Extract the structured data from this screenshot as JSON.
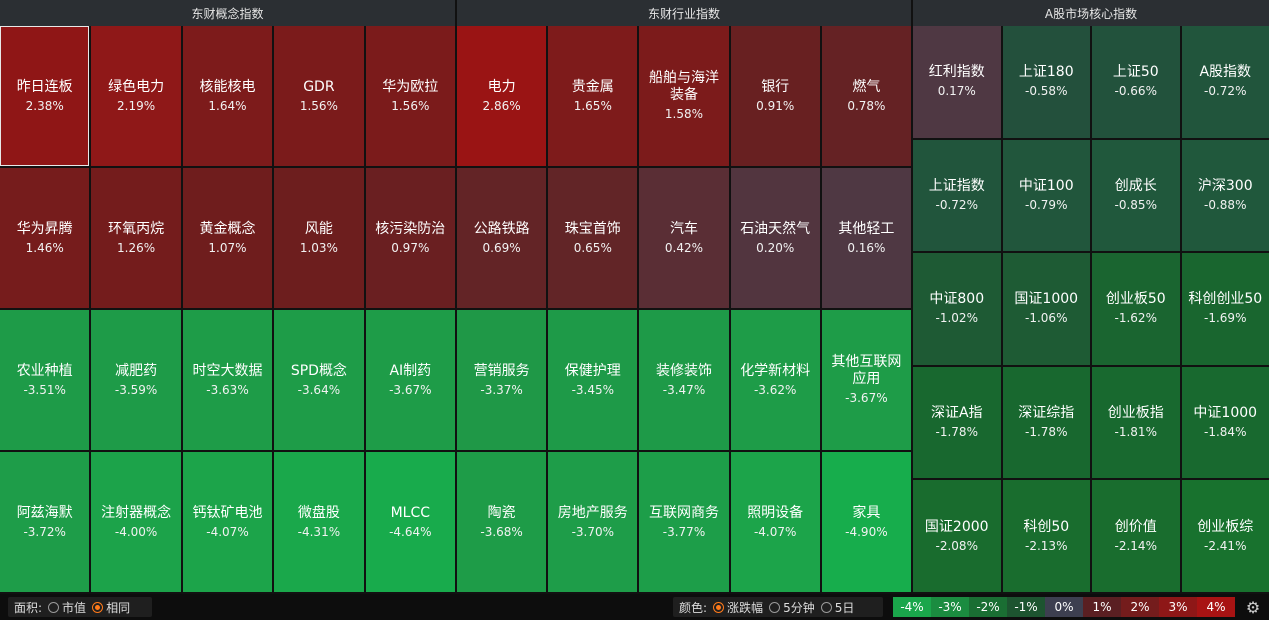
{
  "panels": [
    {
      "title": "东财概念指数",
      "rows": 4,
      "cols": 5,
      "items": [
        {
          "name": "昨日连板",
          "pct": "2.38%",
          "color": "#8f1616",
          "selected": true
        },
        {
          "name": "绿色电力",
          "pct": "2.19%",
          "color": "#8f1818"
        },
        {
          "name": "核能核电",
          "pct": "1.64%",
          "color": "#7d1b1b"
        },
        {
          "name": "GDR",
          "pct": "1.56%",
          "color": "#7b1b1b"
        },
        {
          "name": "华为欧拉",
          "pct": "1.56%",
          "color": "#7b1b1b"
        },
        {
          "name": "华为昇腾",
          "pct": "1.46%",
          "color": "#761c1c"
        },
        {
          "name": "环氧丙烷",
          "pct": "1.26%",
          "color": "#741c1c"
        },
        {
          "name": "黄金概念",
          "pct": "1.07%",
          "color": "#6f1d1d"
        },
        {
          "name": "风能",
          "pct": "1.03%",
          "color": "#6d1e1e"
        },
        {
          "name": "核污染防治",
          "pct": "0.97%",
          "color": "#6a1f21"
        },
        {
          "name": "农业种植",
          "pct": "-3.51%",
          "color": "#1e9b48"
        },
        {
          "name": "减肥药",
          "pct": "-3.59%",
          "color": "#1e9b48"
        },
        {
          "name": "时空大数据",
          "pct": "-3.63%",
          "color": "#1e9c48"
        },
        {
          "name": "SPD概念",
          "pct": "-3.64%",
          "color": "#1e9c48"
        },
        {
          "name": "AI制药",
          "pct": "-3.67%",
          "color": "#1e9c48"
        },
        {
          "name": "阿兹海默",
          "pct": "-3.72%",
          "color": "#1e9d49"
        },
        {
          "name": "注射器概念",
          "pct": "-4.00%",
          "color": "#1ca34a"
        },
        {
          "name": "钙钛矿电池",
          "pct": "-4.07%",
          "color": "#1ca44a"
        },
        {
          "name": "微盘股",
          "pct": "-4.31%",
          "color": "#1aa84b"
        },
        {
          "name": "MLCC",
          "pct": "-4.64%",
          "color": "#18ab4c"
        }
      ]
    },
    {
      "title": "东财行业指数",
      "rows": 4,
      "cols": 5,
      "items": [
        {
          "name": "电力",
          "pct": "2.86%",
          "color": "#9a1414"
        },
        {
          "name": "贵金属",
          "pct": "1.65%",
          "color": "#7e1b1b"
        },
        {
          "name": "船舶与海洋装备",
          "pct": "1.58%",
          "color": "#7c1b1b"
        },
        {
          "name": "银行",
          "pct": "0.91%",
          "color": "#682021"
        },
        {
          "name": "燃气",
          "pct": "0.78%",
          "color": "#652224"
        },
        {
          "name": "公路铁路",
          "pct": "0.69%",
          "color": "#632426"
        },
        {
          "name": "珠宝首饰",
          "pct": "0.65%",
          "color": "#622527"
        },
        {
          "name": "汽车",
          "pct": "0.42%",
          "color": "#5a2e35"
        },
        {
          "name": "石油天然气",
          "pct": "0.20%",
          "color": "#52353f"
        },
        {
          "name": "其他轻工",
          "pct": "0.16%",
          "color": "#4f3843"
        },
        {
          "name": "营销服务",
          "pct": "-3.37%",
          "color": "#1f9847"
        },
        {
          "name": "保健护理",
          "pct": "-3.45%",
          "color": "#1e9a48"
        },
        {
          "name": "装修装饰",
          "pct": "-3.47%",
          "color": "#1e9a48"
        },
        {
          "name": "化学新材料",
          "pct": "-3.62%",
          "color": "#1e9c48"
        },
        {
          "name": "其他互联网应用",
          "pct": "-3.67%",
          "color": "#1e9c48"
        },
        {
          "name": "陶瓷",
          "pct": "-3.68%",
          "color": "#1e9c48"
        },
        {
          "name": "房地产服务",
          "pct": "-3.70%",
          "color": "#1e9d49"
        },
        {
          "name": "互联网商务",
          "pct": "-3.77%",
          "color": "#1d9e49"
        },
        {
          "name": "照明设备",
          "pct": "-4.07%",
          "color": "#1ca44a"
        },
        {
          "name": "家具",
          "pct": "-4.90%",
          "color": "#17ad4c"
        }
      ]
    },
    {
      "title": "A股市场核心指数",
      "rows": 5,
      "cols": 4,
      "items": [
        {
          "name": "红利指数",
          "pct": "0.17%",
          "color": "#4f3843"
        },
        {
          "name": "上证180",
          "pct": "-0.58%",
          "color": "#23503c"
        },
        {
          "name": "上证50",
          "pct": "-0.66%",
          "color": "#22523c"
        },
        {
          "name": "A股指数",
          "pct": "-0.72%",
          "color": "#21553c"
        },
        {
          "name": "上证指数",
          "pct": "-0.72%",
          "color": "#21553c"
        },
        {
          "name": "中证100",
          "pct": "-0.79%",
          "color": "#21563c"
        },
        {
          "name": "创成长",
          "pct": "-0.85%",
          "color": "#20583c"
        },
        {
          "name": "沪深300",
          "pct": "-0.88%",
          "color": "#20583c"
        },
        {
          "name": "中证800",
          "pct": "-1.02%",
          "color": "#1e5a34"
        },
        {
          "name": "国证1000",
          "pct": "-1.06%",
          "color": "#1e5b34"
        },
        {
          "name": "创业板50",
          "pct": "-1.62%",
          "color": "#1a6530"
        },
        {
          "name": "科创创业50",
          "pct": "-1.69%",
          "color": "#19662f"
        },
        {
          "name": "深证A指",
          "pct": "-1.78%",
          "color": "#18682f"
        },
        {
          "name": "深证综指",
          "pct": "-1.78%",
          "color": "#18682f"
        },
        {
          "name": "创业板指",
          "pct": "-1.81%",
          "color": "#18692f"
        },
        {
          "name": "中证1000",
          "pct": "-1.84%",
          "color": "#18692f"
        },
        {
          "name": "国证2000",
          "pct": "-2.08%",
          "color": "#196c2e"
        },
        {
          "name": "科创50",
          "pct": "-2.13%",
          "color": "#196d2e"
        },
        {
          "name": "创价值",
          "pct": "-2.14%",
          "color": "#196d2e"
        },
        {
          "name": "创业板综",
          "pct": "-2.41%",
          "color": "#18722e"
        }
      ]
    }
  ],
  "controls": {
    "area_label": "面积:",
    "area_options": [
      {
        "label": "市值",
        "selected": false
      },
      {
        "label": "相同",
        "selected": true
      }
    ],
    "color_label": "颜色:",
    "color_options": [
      {
        "label": "涨跌幅",
        "selected": true
      },
      {
        "label": "5分钟",
        "selected": false
      },
      {
        "label": "5日",
        "selected": false
      }
    ]
  },
  "legend": [
    {
      "label": "-4%",
      "color": "#1aa64b"
    },
    {
      "label": "-3%",
      "color": "#1b8c40"
    },
    {
      "label": "-2%",
      "color": "#1a6e33"
    },
    {
      "label": "-1%",
      "color": "#1d5430"
    },
    {
      "label": "0%",
      "color": "#3d3f50"
    },
    {
      "label": "1%",
      "color": "#5a1f22"
    },
    {
      "label": "2%",
      "color": "#741c1c"
    },
    {
      "label": "3%",
      "color": "#8e1717"
    },
    {
      "label": "4%",
      "color": "#a81313"
    }
  ],
  "icons": {
    "settings": "gear-icon"
  }
}
